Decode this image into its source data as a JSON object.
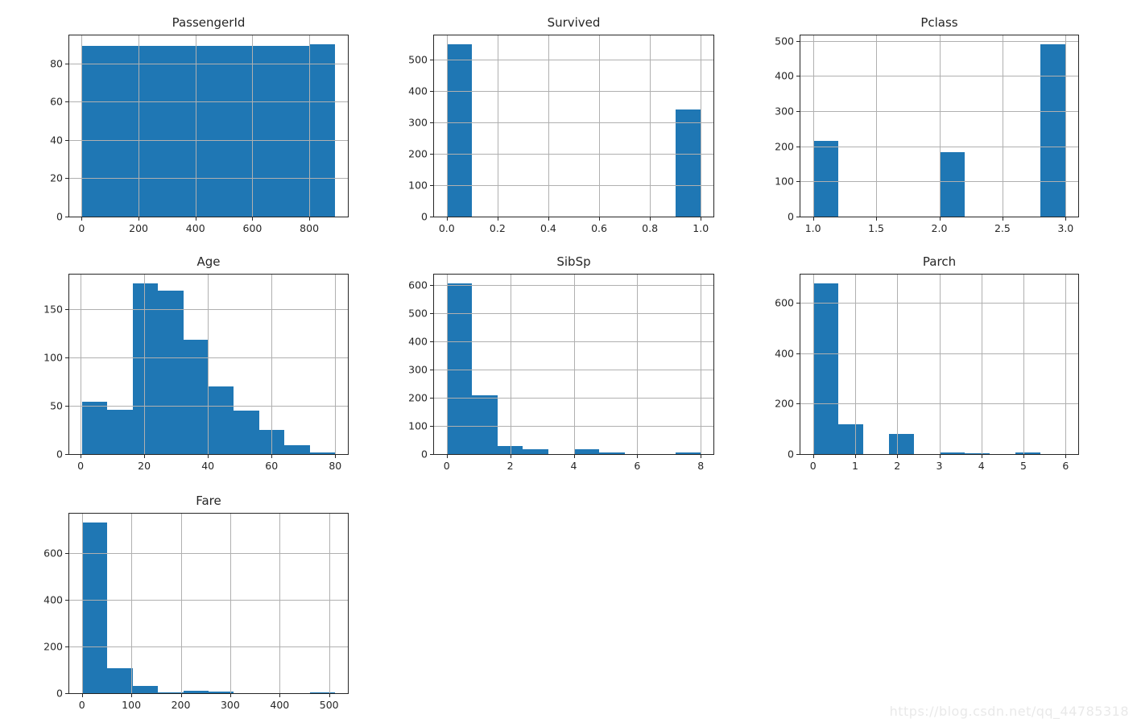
{
  "figure": {
    "background": "#ffffff",
    "watermark": {
      "text": "https://blog.csdn.net/qq_44785318",
      "color": "#e9e9e9"
    }
  },
  "style": {
    "bar_color": "#1f77b4",
    "grid_color": "#b0b0b0",
    "spine_color": "#262626",
    "text_color": "#262626"
  },
  "chart_kind": "histogram-grid",
  "chart_data": [
    {
      "type": "bar",
      "kind": "histogram",
      "title": "PassengerId",
      "bins": {
        "start": 1,
        "end": 891,
        "n": 10
      },
      "counts": [
        89,
        89,
        89,
        89,
        89,
        89,
        89,
        89,
        89,
        90
      ],
      "xlim": [
        -43.5,
        935.5
      ],
      "ylim": [
        0,
        94.5
      ],
      "xtick_labels": [
        "0",
        "200",
        "400",
        "600",
        "800"
      ],
      "ytick_labels": [
        "0",
        "20",
        "40",
        "60",
        "80"
      ],
      "grid": true,
      "legend": false
    },
    {
      "type": "bar",
      "kind": "histogram",
      "title": "Survived",
      "bins": {
        "start": 0,
        "end": 1,
        "n": 10
      },
      "counts": [
        549,
        0,
        0,
        0,
        0,
        0,
        0,
        0,
        0,
        342
      ],
      "xlim": [
        -0.05,
        1.05
      ],
      "ylim": [
        0,
        576.45
      ],
      "xtick_labels": [
        "0.0",
        "0.2",
        "0.4",
        "0.6",
        "0.8",
        "1.0"
      ],
      "ytick_labels": [
        "0",
        "100",
        "200",
        "300",
        "400",
        "500"
      ],
      "grid": true,
      "legend": false
    },
    {
      "type": "bar",
      "kind": "histogram",
      "title": "Pclass",
      "bins": {
        "start": 1,
        "end": 3,
        "n": 10
      },
      "counts": [
        216,
        0,
        0,
        0,
        0,
        184,
        0,
        0,
        0,
        491
      ],
      "xlim": [
        0.9,
        3.1
      ],
      "ylim": [
        0,
        515.55
      ],
      "xtick_labels": [
        "1.0",
        "1.5",
        "2.0",
        "2.5",
        "3.0"
      ],
      "ytick_labels": [
        "0",
        "100",
        "200",
        "300",
        "400",
        "500"
      ],
      "grid": true,
      "legend": false
    },
    {
      "type": "bar",
      "kind": "histogram",
      "title": "Age",
      "bins": {
        "start": 0.42,
        "end": 80,
        "n": 10
      },
      "counts": [
        54,
        46,
        177,
        169,
        118,
        70,
        45,
        25,
        9,
        2
      ],
      "xlim": [
        -3.56,
        83.98
      ],
      "ylim": [
        0,
        185.85
      ],
      "xtick_labels": [
        "0",
        "20",
        "40",
        "60",
        "80"
      ],
      "ytick_labels": [
        "0",
        "50",
        "100",
        "150"
      ],
      "grid": true,
      "legend": false
    },
    {
      "type": "bar",
      "kind": "histogram",
      "title": "SibSp",
      "bins": {
        "start": 0,
        "end": 8,
        "n": 10
      },
      "counts": [
        608,
        209,
        28,
        16,
        0,
        18,
        5,
        0,
        0,
        7
      ],
      "xlim": [
        -0.4,
        8.4
      ],
      "ylim": [
        0,
        638.4
      ],
      "xtick_labels": [
        "0",
        "2",
        "4",
        "6",
        "8"
      ],
      "ytick_labels": [
        "0",
        "100",
        "200",
        "300",
        "400",
        "500",
        "600"
      ],
      "grid": true,
      "legend": false
    },
    {
      "type": "bar",
      "kind": "histogram",
      "title": "Parch",
      "bins": {
        "start": 0,
        "end": 6,
        "n": 10
      },
      "counts": [
        678,
        118,
        0,
        80,
        0,
        5,
        4,
        0,
        5,
        1
      ],
      "xlim": [
        -0.3,
        6.3
      ],
      "ylim": [
        0,
        711.9
      ],
      "xtick_labels": [
        "0",
        "1",
        "2",
        "3",
        "4",
        "5",
        "6"
      ],
      "ytick_labels": [
        "0",
        "200",
        "400",
        "600"
      ],
      "grid": true,
      "legend": false
    },
    {
      "type": "bar",
      "kind": "histogram",
      "title": "Fare",
      "bins": {
        "start": 0,
        "end": 512.33,
        "n": 10
      },
      "counts": [
        732,
        106,
        31,
        2,
        11,
        6,
        0,
        0,
        0,
        3
      ],
      "xlim": [
        -25.62,
        537.95
      ],
      "ylim": [
        0,
        768.6
      ],
      "xtick_labels": [
        "0",
        "100",
        "200",
        "300",
        "400",
        "500"
      ],
      "ytick_labels": [
        "0",
        "200",
        "400",
        "600"
      ],
      "grid": true,
      "legend": false
    }
  ]
}
